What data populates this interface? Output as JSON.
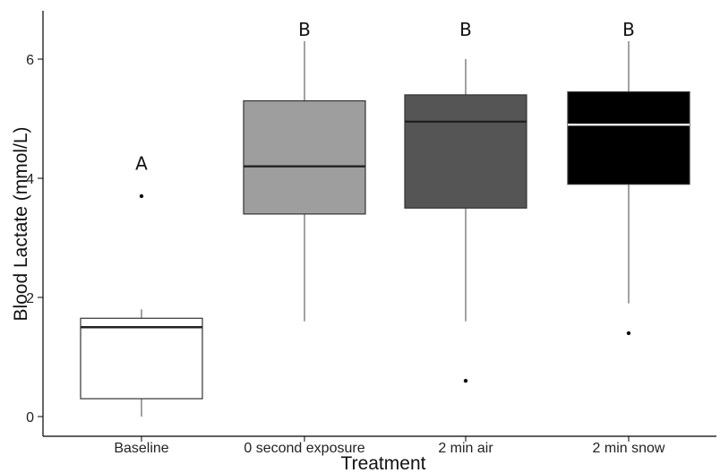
{
  "chart_data": {
    "type": "boxplot",
    "xlabel": "Treatment",
    "ylabel": "Blood Lactate (mmol/L)",
    "ylim": [
      -0.3,
      6.8
    ],
    "yticks": [
      0,
      2,
      4,
      6
    ],
    "grid": false,
    "categories": [
      "Baseline",
      "0 second exposure",
      "2 min air",
      "2 min snow"
    ],
    "boxes": [
      {
        "category": "Baseline",
        "min": 0.0,
        "q1": 0.3,
        "median": 1.5,
        "q3": 1.65,
        "max": 1.8,
        "outliers": [
          3.7
        ],
        "fill": "#ffffff",
        "median_color": "#222222",
        "letter": "A"
      },
      {
        "category": "0 second exposure",
        "min": 1.6,
        "q1": 3.4,
        "median": 4.2,
        "q3": 5.3,
        "max": 6.3,
        "outliers": [],
        "fill": "#9e9e9e",
        "median_color": "#222222",
        "letter": "B"
      },
      {
        "category": "2 min air",
        "min": 1.6,
        "q1": 3.5,
        "median": 4.95,
        "q3": 5.4,
        "max": 6.0,
        "outliers": [
          0.6
        ],
        "fill": "#555555",
        "median_color": "#222222",
        "letter": "B"
      },
      {
        "category": "2 min snow",
        "min": 1.9,
        "q1": 3.9,
        "median": 4.9,
        "q3": 5.45,
        "max": 6.3,
        "outliers": [
          1.4
        ],
        "fill": "#000000",
        "median_color": "#ffffff",
        "letter": "B"
      }
    ],
    "letter_values": [
      4.25,
      6.5,
      6.5,
      6.5
    ]
  }
}
